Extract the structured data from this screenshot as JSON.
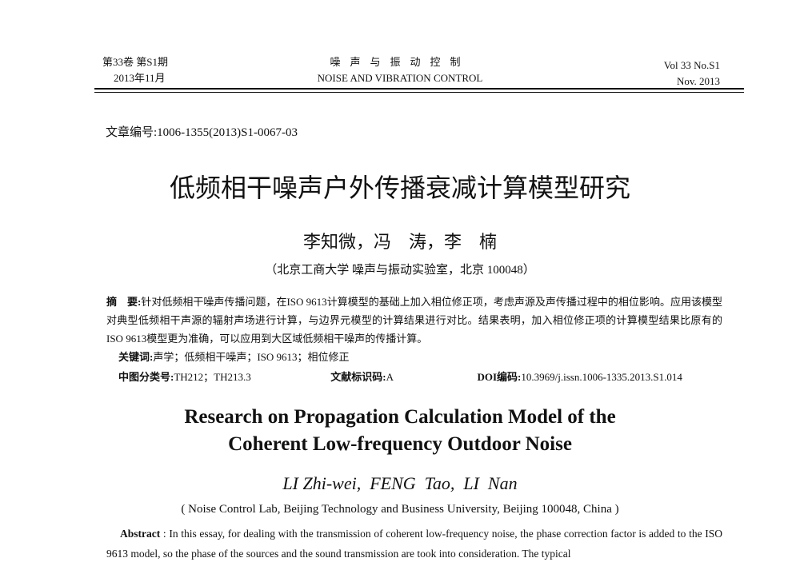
{
  "header": {
    "volume": "第33卷 第S1期",
    "date_cn": "2013年11月",
    "journal_cn": "噪声与振动控制",
    "journal_en": "NOISE AND VIBRATION CONTROL",
    "volume_en": "Vol 33 No.S1",
    "date_en": "Nov. 2013"
  },
  "article_number": "文章编号:1006-1355(2013)S1-0067-03",
  "title_cn": "低频相干噪声户外传播衰减计算模型研究",
  "authors_cn": "李知微，冯　涛，李　楠",
  "affiliation_cn": "（北京工商大学 噪声与振动实验室，北京 100048）",
  "abstract_cn": {
    "label": "摘　要:",
    "text": "针对低频相干噪声传播问题，在ISO 9613计算模型的基础上加入相位修正项，考虑声源及声传播过程中的相位影响。应用该模型对典型低频相干声源的辐射声场进行计算，与边界元模型的计算结果进行对比。结果表明，加入相位修正项的计算模型结果比原有的ISO 9613模型更为准确，可以应用到大区域低频相干噪声的传播计算。"
  },
  "keywords": {
    "label": "关键词:",
    "text": "声学；低频相干噪声；ISO 9613；相位修正"
  },
  "classification": {
    "label": "中图分类号:",
    "value": "TH212；TH213.3"
  },
  "doc_code": {
    "label": "文献标识码:",
    "value": "A"
  },
  "doi": {
    "label": "DOI编码:",
    "value": "10.3969/j.issn.1006-1335.2013.S1.014"
  },
  "title_en_line1": "Research on Propagation Calculation Model of the",
  "title_en_line2": "Coherent Low-frequency Outdoor Noise",
  "authors_en": "LI Zhi-wei,  FENG  Tao,  LI  Nan",
  "affiliation_en": "( Noise Control Lab,  Beijing Technology and Business University,  Beijing  100048,  China )",
  "abstract_en": {
    "label": "Abstract",
    "text": ": In this essay, for dealing with the transmission of coherent low-frequency noise, the phase correction factor is added to the ISO 9613 model, so the phase of the sources and the sound transmission are took into consideration. The typical"
  }
}
